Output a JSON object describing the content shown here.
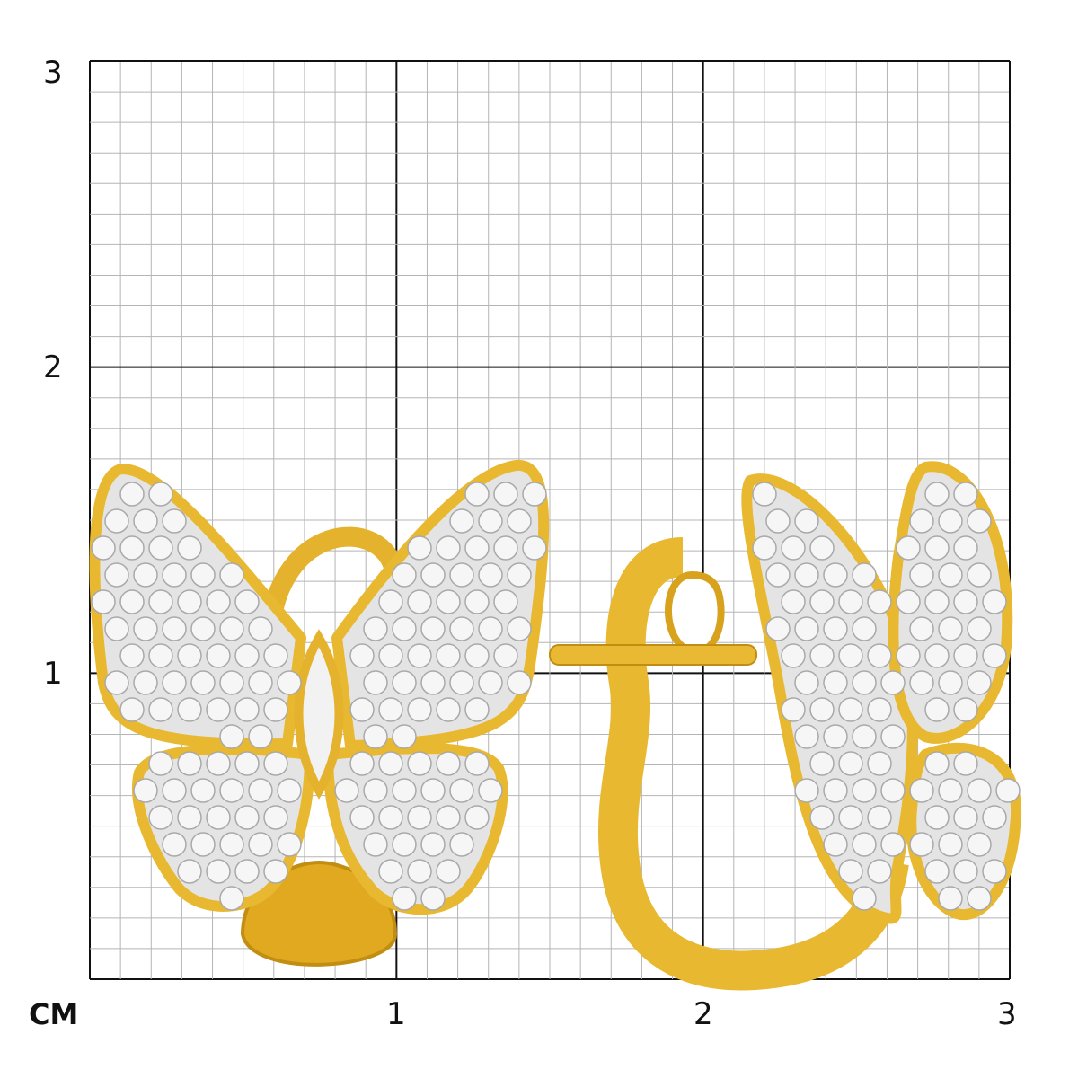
{
  "axes": {
    "unit": "CM",
    "x_ticks": [
      "1",
      "2",
      "3"
    ],
    "y_ticks": [
      "3",
      "2",
      "1"
    ],
    "range_cm": [
      0,
      3
    ],
    "minor_divisions_per_cm": 10
  },
  "colors": {
    "minor_grid": "#b5b5b5",
    "major_grid": "#111111",
    "gold": "#e8b830",
    "gold_dark": "#c18e12",
    "pave": "#e4e4e4"
  },
  "subject": {
    "icon": "butterfly-earrings-photo"
  }
}
